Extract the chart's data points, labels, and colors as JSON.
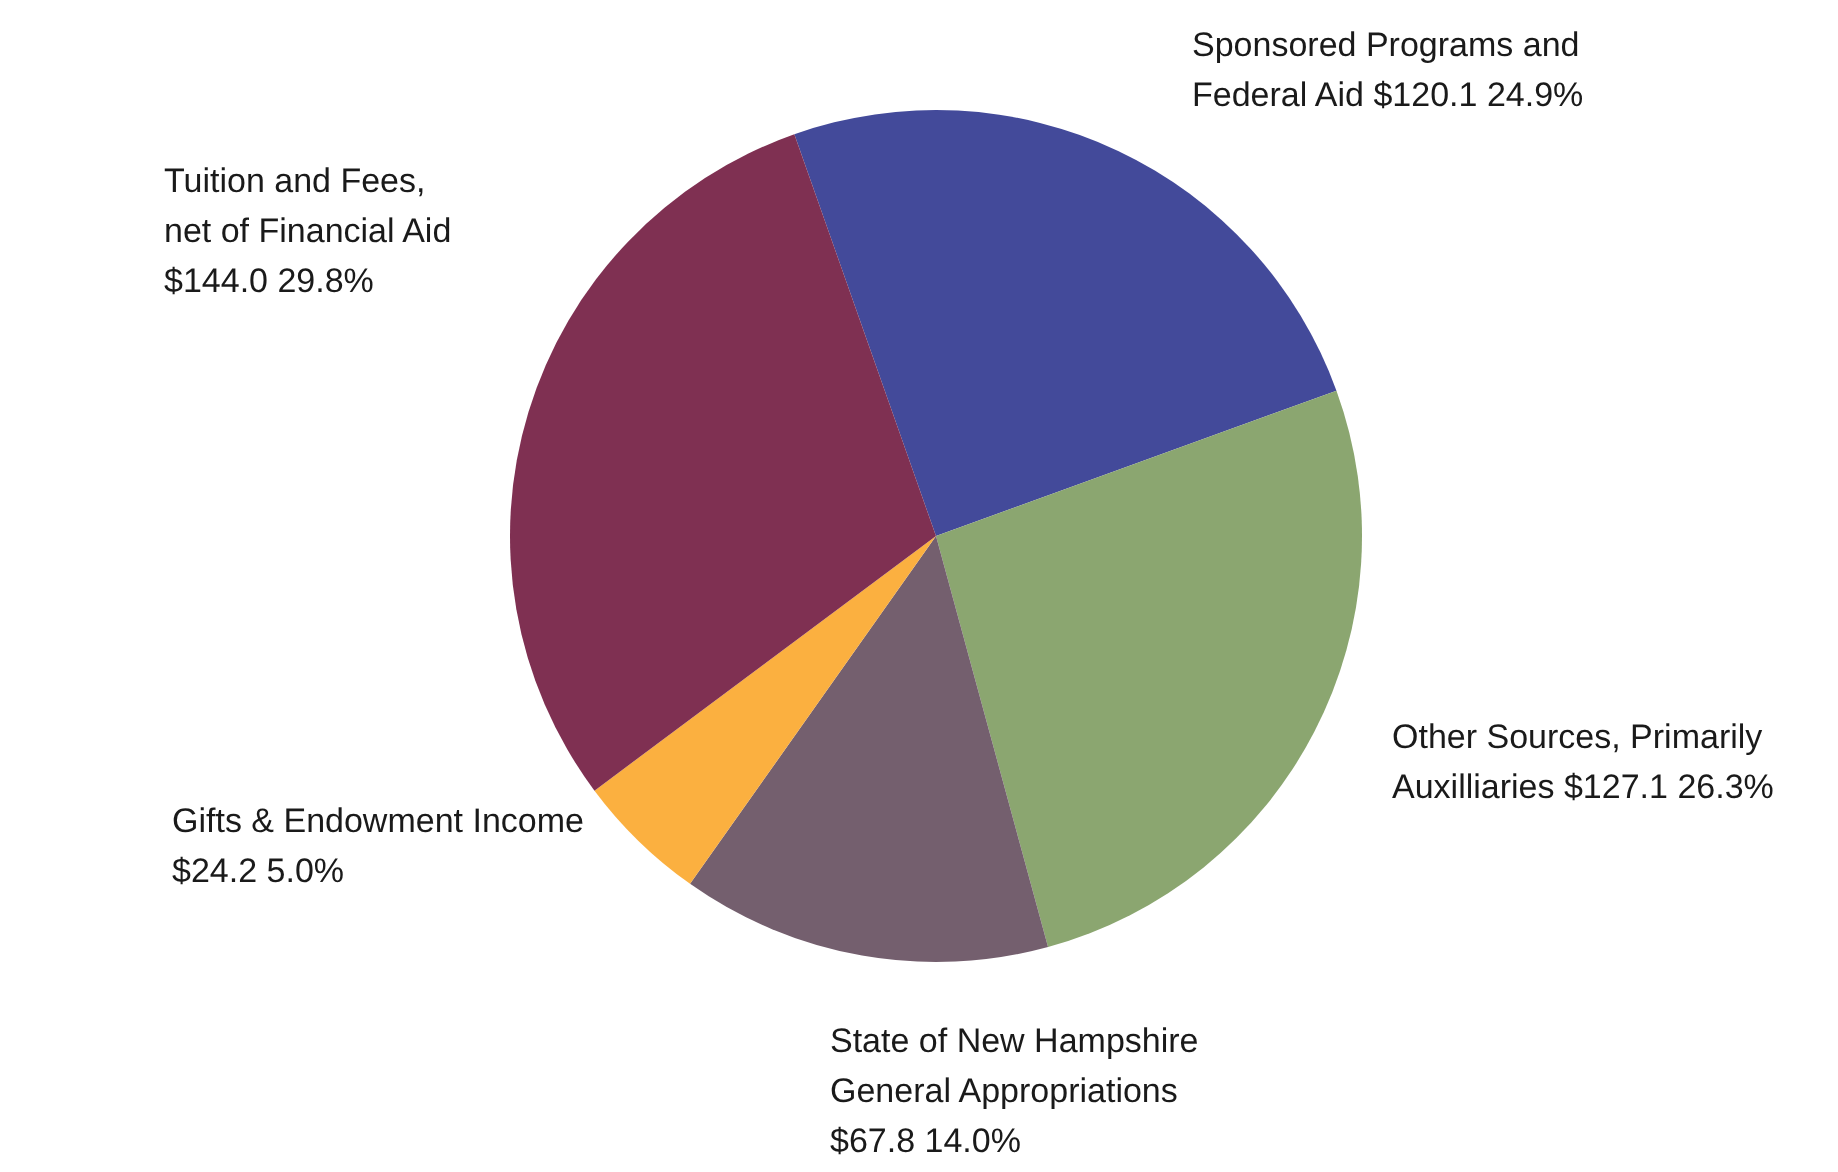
{
  "chart_data": {
    "type": "pie",
    "categories": [
      "Sponsored Programs and Federal Aid",
      "Other Sources, Primarily Auxilliaries",
      "State of New Hampshire General Appropriations",
      "Gifts & Endowment Income",
      "Tuition and Fees, net of Financial Aid"
    ],
    "values": [
      120.1,
      127.1,
      67.8,
      24.2,
      144.0
    ],
    "value_labels": [
      "$120.1 24.9%",
      "$127.1 26.3%",
      "$67.8 14.0%",
      "$24.2 5.0%",
      "$144.0 29.8%"
    ],
    "colors": [
      "#434a9a",
      "#8ba670",
      "#745f6e",
      "#fbb040",
      "#7f3052"
    ]
  }
}
